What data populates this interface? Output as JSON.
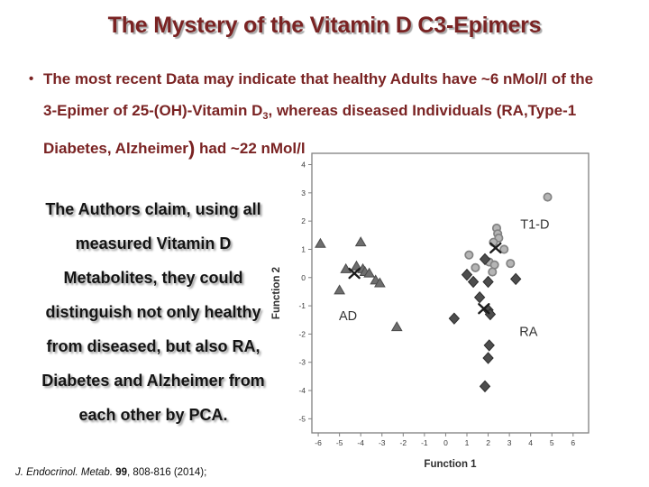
{
  "slide": {
    "title": "The Mystery of the Vitamin D C3-Epimers",
    "bullet_lines": [
      [
        {
          "t": "The most recent Data may indicate that healthy Adults have ~6 nMol/l of the"
        }
      ],
      [
        {
          "t": "3-Epimer of 25-(OH)-Vitamin D"
        },
        {
          "t": "3",
          "sub": true
        },
        {
          "t": ", whereas diseased Individuals (RA,Type-1"
        }
      ],
      [
        {
          "t": "Diabetes, Alzheimer"
        },
        {
          "t": ")",
          "big": true
        },
        {
          "t": " had ~22 nMol/l"
        }
      ]
    ],
    "bullet_glyph": "•",
    "claim_lines": [
      "The Authors claim, using all",
      "measured Vitamin D",
      "Metabolites, they could",
      "distinguish not only healthy",
      "from diseased, but also RA,",
      "Diabetes and Alzheimer from",
      "each other by PCA."
    ],
    "citation": {
      "journal_italic": "J. Endocrinol. Metab.",
      "volume_bold": " 99",
      "rest": ", 808-816 (2014);"
    }
  },
  "colors": {
    "title_text": "#7a2323",
    "bullet_text": "#7a2323",
    "claim_text": "#141414",
    "axis_line": "#808080",
    "tick_text": "#3c3c3c",
    "axis_label_text": "#2e2e2e",
    "cluster_label_text": "#333333",
    "triangle_fill": "#6e6e6e",
    "triangle_stroke": "#4a4a4a",
    "circle_fill": "#b5b5b5",
    "circle_stroke": "#838383",
    "diamond_fill": "#4d4d4d",
    "diamond_stroke": "#2d2d2d",
    "centroid_x": "#1c1c1c"
  },
  "chart_data": {
    "type": "scatter",
    "xlabel": "Function 1",
    "ylabel": "Function 2",
    "xlim": [
      -6.3,
      6.73
    ],
    "ylim": [
      -5.5,
      4.4
    ],
    "x_ticks": [
      -6,
      -5,
      -4,
      -3,
      -2,
      -1,
      0,
      1,
      2,
      3,
      4,
      5,
      6
    ],
    "y_ticks": [
      -5,
      -4,
      -3,
      -2,
      -1,
      0,
      1,
      2,
      3,
      4
    ],
    "grid": false,
    "legend": "none (cluster labels annotated in plot)",
    "series": [
      {
        "name": "AD",
        "marker": "triangle",
        "points": [
          [
            -5.9,
            1.2
          ],
          [
            -4.0,
            1.25
          ],
          [
            -5.0,
            -0.45
          ],
          [
            -4.7,
            0.3
          ],
          [
            -4.2,
            0.4
          ],
          [
            -3.9,
            0.3
          ],
          [
            -3.8,
            0.2
          ],
          [
            -3.6,
            0.15
          ],
          [
            -3.3,
            -0.1
          ],
          [
            -3.1,
            -0.2
          ],
          [
            -2.3,
            -1.75
          ]
        ],
        "centroid": [
          -4.3,
          0.15
        ]
      },
      {
        "name": "T1-D",
        "marker": "circle",
        "points": [
          [
            4.8,
            2.85
          ],
          [
            2.4,
            1.75
          ],
          [
            2.45,
            1.55
          ],
          [
            2.5,
            1.4
          ],
          [
            2.25,
            1.25
          ],
          [
            2.75,
            1.0
          ],
          [
            1.1,
            0.8
          ],
          [
            1.4,
            0.35
          ],
          [
            2.05,
            0.55
          ],
          [
            2.3,
            0.45
          ],
          [
            3.05,
            0.5
          ],
          [
            2.2,
            0.2
          ]
        ],
        "centroid": [
          2.35,
          1.05
        ]
      },
      {
        "name": "RA",
        "marker": "diamond",
        "points": [
          [
            1.85,
            0.65
          ],
          [
            1.0,
            0.1
          ],
          [
            1.3,
            -0.15
          ],
          [
            2.0,
            -0.15
          ],
          [
            3.3,
            -0.05
          ],
          [
            1.6,
            -0.7
          ],
          [
            2.0,
            -1.15
          ],
          [
            2.1,
            -1.3
          ],
          [
            0.4,
            -1.45
          ],
          [
            2.05,
            -2.4
          ],
          [
            2.0,
            -2.85
          ],
          [
            1.85,
            -3.85
          ]
        ],
        "centroid": [
          1.8,
          -1.1
        ]
      }
    ],
    "annotations": [
      {
        "text": "T1-D",
        "x": 4.2,
        "y": 1.9
      },
      {
        "text": "AD",
        "x": -4.6,
        "y": -1.35
      },
      {
        "text": "RA",
        "x": 3.9,
        "y": -1.9
      }
    ]
  }
}
